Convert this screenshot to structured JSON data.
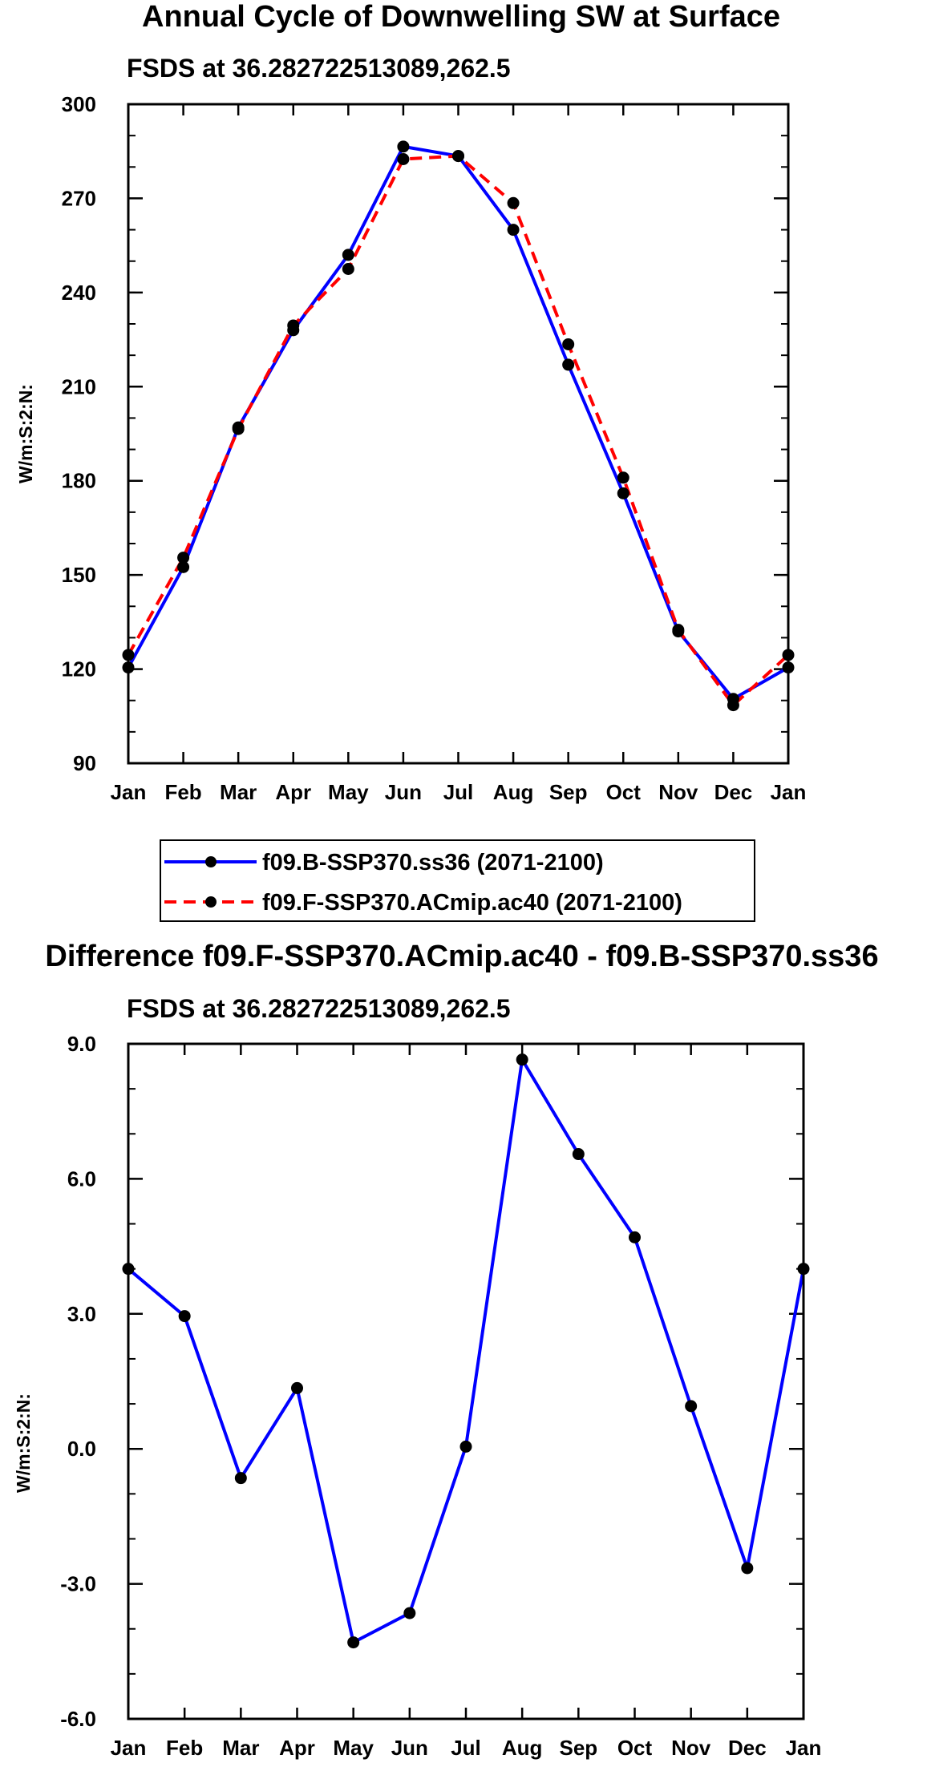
{
  "chart_data": [
    {
      "type": "line",
      "title": "Annual Cycle of Downwelling SW at Surface",
      "subtitle": "FSDS at 36.282722513089,262.5",
      "xlabel": "",
      "ylabel": "W/m:S:2:N:",
      "categories": [
        "Jan",
        "Feb",
        "Mar",
        "Apr",
        "May",
        "Jun",
        "Jul",
        "Aug",
        "Sep",
        "Oct",
        "Nov",
        "Dec",
        "Jan"
      ],
      "ylim": [
        90,
        300
      ],
      "yticks": [
        90,
        120,
        150,
        180,
        210,
        240,
        270,
        300
      ],
      "ytick_labels": [
        "90",
        "120",
        "150",
        "180",
        "210",
        "240",
        "270",
        "300"
      ],
      "grid": false,
      "series": [
        {
          "name": "f09.B-SSP370.ss36 (2071-2100)",
          "color": "#0000ff",
          "dash": "solid",
          "values": [
            120.5,
            152.5,
            197,
            228,
            252,
            286.5,
            283.5,
            260,
            217,
            176,
            132,
            110.5,
            120.5
          ]
        },
        {
          "name": "f09.F-SSP370.ACmip.ac40 (2071-2100)",
          "color": "#ff0000",
          "dash": "dashed",
          "values": [
            124.5,
            155.5,
            196.5,
            229.5,
            247.5,
            282.5,
            283.5,
            268.5,
            223.5,
            181,
            132.5,
            108.5,
            124.5
          ]
        }
      ],
      "legend": {
        "entries": [
          "f09.B-SSP370.ss36 (2071-2100)",
          "f09.F-SSP370.ACmip.ac40 (2071-2100)"
        ],
        "placement": "bottom"
      }
    },
    {
      "type": "line",
      "title": "Difference f09.F-SSP370.ACmip.ac40 - f09.B-SSP370.ss36",
      "subtitle": "FSDS at 36.282722513089,262.5",
      "xlabel": "",
      "ylabel": "W/m:S:2:N:",
      "categories": [
        "Jan",
        "Feb",
        "Mar",
        "Apr",
        "May",
        "Jun",
        "Jul",
        "Aug",
        "Sep",
        "Oct",
        "Nov",
        "Dec",
        "Jan"
      ],
      "ylim": [
        -6,
        9
      ],
      "yticks": [
        -6,
        -3,
        0,
        3,
        6,
        9
      ],
      "ytick_labels": [
        "-6.0",
        "-3.0",
        "0.0",
        "3.0",
        "6.0",
        "9.0"
      ],
      "grid": false,
      "series": [
        {
          "name": "Difference",
          "color": "#0000ff",
          "dash": "solid",
          "values": [
            4.0,
            2.95,
            -0.65,
            1.35,
            -4.3,
            -3.65,
            0.05,
            8.65,
            6.55,
            4.7,
            0.95,
            -2.65,
            4.0
          ]
        }
      ]
    }
  ]
}
